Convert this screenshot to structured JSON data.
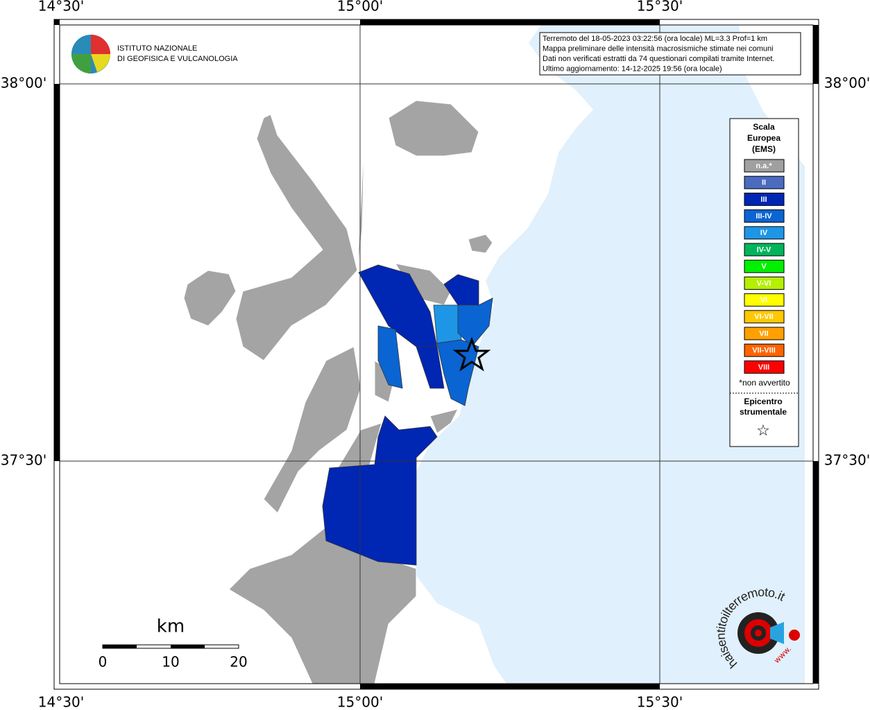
{
  "header": {
    "institute": [
      "ISTITUTO NAZIONALE",
      "DI GEOFISICA E VULCANOLOGIA"
    ]
  },
  "info": [
    "Terremoto del 18-05-2023 03:22:56 (ora locale) ML=3.3 Prof=1 km",
    "Mappa preliminare delle intensità macrosismiche stimate nei comuni",
    "Dati non verificati estratti da 74 questionari compilati tramite Internet.",
    "Ultimo aggiornamento: 14-12-2025 19:56 (ora locale)"
  ],
  "coordinates": {
    "top": [
      "14°30'",
      "15°00'",
      "15°30'"
    ],
    "bottom": [
      "14°30'",
      "15°00'",
      "15°30'"
    ],
    "left": [
      "38°00'",
      "37°30'"
    ],
    "right": [
      "38°00'",
      "37°30'"
    ]
  },
  "legend": {
    "title": [
      "Scala",
      "Europea",
      "(EMS)"
    ],
    "items": [
      {
        "label": "n.a.*",
        "color": "#a0a0a0"
      },
      {
        "label": "II",
        "color": "#4b6bbf"
      },
      {
        "label": "III",
        "color": "#0026b4"
      },
      {
        "label": "III-IV",
        "color": "#0a64d2"
      },
      {
        "label": "IV",
        "color": "#1e96e6"
      },
      {
        "label": "IV-V",
        "color": "#00b45a"
      },
      {
        "label": "V",
        "color": "#00f000"
      },
      {
        "label": "V-VI",
        "color": "#b4f000"
      },
      {
        "label": "VI",
        "color": "#ffff00"
      },
      {
        "label": "VI-VII",
        "color": "#ffc800"
      },
      {
        "label": "VII",
        "color": "#ffa000"
      },
      {
        "label": "VII-VIII",
        "color": "#ff6400"
      },
      {
        "label": "VIII",
        "color": "#ff0000"
      }
    ],
    "note": "*non avvertito",
    "epicenter": [
      "Epicentro",
      "strumentale"
    ],
    "symbol": "☆"
  },
  "scale_bar": {
    "unit": "km",
    "ticks": [
      0,
      10,
      20
    ]
  },
  "logo": {
    "text": "haisentitoilterremoto.it",
    "prefix": "www."
  }
}
